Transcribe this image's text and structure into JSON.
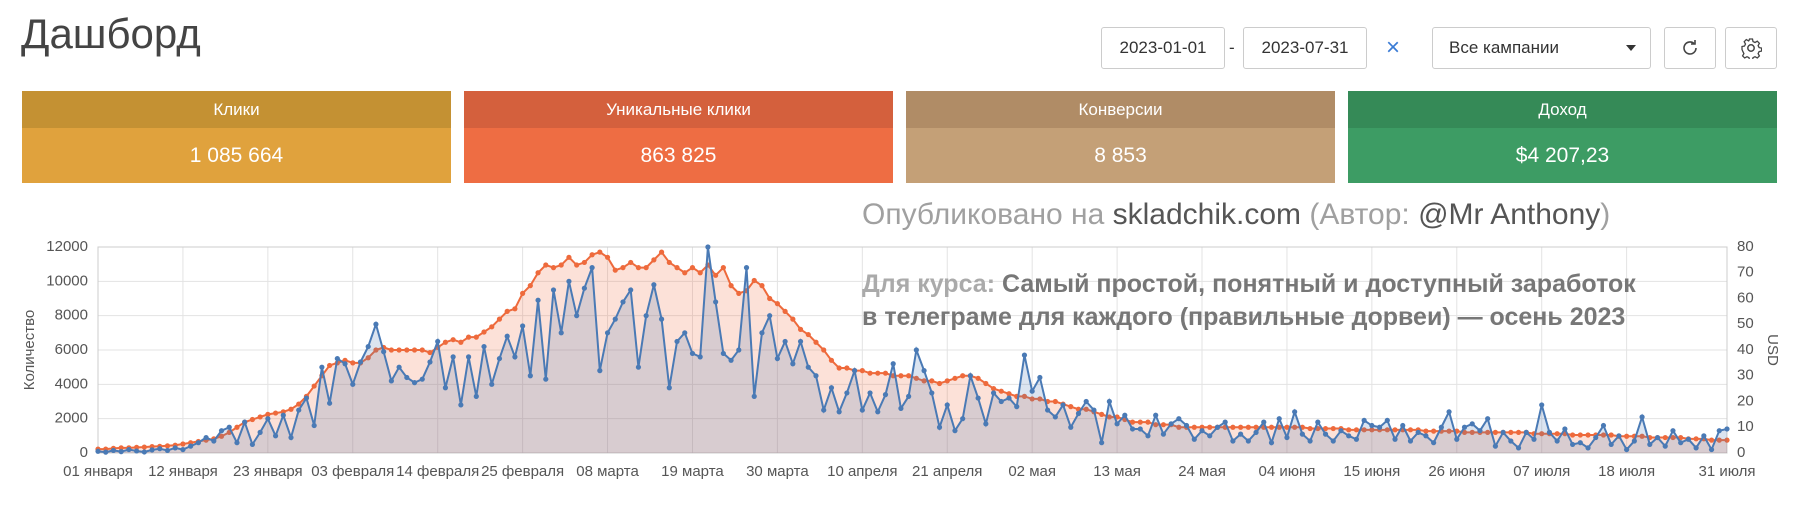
{
  "header": {
    "title": "Дашборд",
    "date_from": "2023-01-01",
    "date_separator": "-",
    "date_to": "2023-07-31",
    "clear": "×",
    "campaign": "Все кампании"
  },
  "cards": [
    {
      "label": "Клики",
      "value": "1 085 664"
    },
    {
      "label": "Уникальные клики",
      "value": "863 825"
    },
    {
      "label": "Конверсии",
      "value": "8 853"
    },
    {
      "label": "Доход",
      "value": "$4 207,23"
    }
  ],
  "watermark": {
    "line1": [
      "Опубликовано на ",
      "skladchik.com",
      " (Автор: ",
      "@Mr Anthony",
      ")"
    ],
    "course_label": "Для курса:",
    "course_line1": "Самый простой, понятный и доступный заработок",
    "course_line2": "в телеграме для каждого (правильные дорвеи) — осень 2023"
  },
  "chart_data": {
    "type": "line",
    "y_label": "Количество",
    "y2_label": "USD",
    "categories": [
      "01 января",
      null,
      null,
      null,
      null,
      null,
      null,
      null,
      null,
      null,
      null,
      "12 января",
      null,
      null,
      null,
      null,
      null,
      null,
      null,
      null,
      null,
      null,
      "23 января",
      null,
      null,
      null,
      null,
      null,
      null,
      null,
      null,
      null,
      null,
      "03 февраля",
      null,
      null,
      null,
      null,
      null,
      null,
      null,
      null,
      null,
      null,
      "14 февраля",
      null,
      null,
      null,
      null,
      null,
      null,
      null,
      null,
      null,
      null,
      "25 февраля",
      null,
      null,
      null,
      null,
      null,
      null,
      null,
      null,
      null,
      null,
      "08 марта",
      null,
      null,
      null,
      null,
      null,
      null,
      null,
      null,
      null,
      null,
      "19 марта",
      null,
      null,
      null,
      null,
      null,
      null,
      null,
      null,
      null,
      null,
      "30 марта",
      null,
      null,
      null,
      null,
      null,
      null,
      null,
      null,
      null,
      null,
      "10 апреля",
      null,
      null,
      null,
      null,
      null,
      null,
      null,
      null,
      null,
      null,
      "21 апреля",
      null,
      null,
      null,
      null,
      null,
      null,
      null,
      null,
      null,
      null,
      "02 мая",
      null,
      null,
      null,
      null,
      null,
      null,
      null,
      null,
      null,
      null,
      "13 мая",
      null,
      null,
      null,
      null,
      null,
      null,
      null,
      null,
      null,
      null,
      "24 мая",
      null,
      null,
      null,
      null,
      null,
      null,
      null,
      null,
      null,
      null,
      "04 июня",
      null,
      null,
      null,
      null,
      null,
      null,
      null,
      null,
      null,
      null,
      "15 июня",
      null,
      null,
      null,
      null,
      null,
      null,
      null,
      null,
      null,
      null,
      "26 июня",
      null,
      null,
      null,
      null,
      null,
      null,
      null,
      null,
      null,
      null,
      "07 июля",
      null,
      null,
      null,
      null,
      null,
      null,
      null,
      null,
      null,
      null,
      "18 июля",
      null,
      null,
      null,
      null,
      null,
      null,
      null,
      null,
      null,
      null,
      null,
      null,
      "31 июля"
    ],
    "series": [
      {
        "color": "#ee6a3c",
        "axis": "y2",
        "values": [
          1.5,
          1.5,
          1.8,
          2,
          2,
          2.2,
          2.3,
          2.5,
          2.6,
          2.8,
          3,
          3.5,
          4,
          4.5,
          5,
          5.5,
          6.5,
          8,
          10,
          12,
          13,
          14,
          15,
          15.5,
          16,
          17,
          19,
          22,
          26,
          30,
          34,
          35,
          36,
          35,
          35,
          37,
          40,
          41,
          40,
          40,
          40,
          40,
          40,
          39,
          41,
          43,
          44,
          43,
          45,
          45,
          47,
          49,
          52,
          55,
          56,
          62,
          65,
          70,
          73,
          72,
          73,
          76,
          73,
          74,
          77,
          78,
          76,
          71,
          72,
          74,
          72,
          72,
          75,
          78,
          74,
          72,
          70,
          72,
          70,
          73,
          69,
          72,
          65,
          62,
          63,
          67,
          65,
          60,
          58,
          55,
          52,
          48,
          46,
          43,
          40,
          36,
          33,
          33,
          32,
          32,
          31,
          31,
          31,
          30,
          30,
          30,
          29,
          28,
          28,
          27,
          28,
          29,
          30,
          30,
          29,
          27,
          25,
          24,
          23,
          22,
          22,
          21,
          21,
          20,
          20,
          19,
          18,
          17,
          17,
          16,
          15,
          14,
          14,
          13,
          12,
          12,
          12,
          11,
          11,
          11,
          10,
          10,
          10,
          10,
          10,
          10,
          10,
          10,
          10,
          10,
          10,
          10,
          10,
          10,
          10,
          10,
          10,
          9.5,
          9.5,
          9.5,
          9.5,
          9.5,
          9,
          9,
          9,
          9,
          9,
          9,
          9,
          9,
          9,
          9,
          8.5,
          8.5,
          8.5,
          8.5,
          8.5,
          8,
          8,
          8,
          8,
          8,
          8,
          8,
          8,
          8,
          7.5,
          7.5,
          7.5,
          7.5,
          7.5,
          7,
          7,
          7,
          7,
          7,
          7,
          6.5,
          6.5,
          6.5,
          6.5,
          6,
          6,
          6,
          6,
          6,
          5.5,
          5.5,
          5.5,
          5,
          5,
          5
        ]
      },
      {
        "color": "#4a7ab5",
        "values": [
          100,
          50,
          150,
          80,
          200,
          120,
          60,
          180,
          250,
          150,
          300,
          200,
          400,
          600,
          900,
          700,
          1300,
          1500,
          600,
          1800,
          500,
          1200,
          2000,
          1000,
          2200,
          900,
          2500,
          3200,
          1600,
          5000,
          2900,
          5500,
          5200,
          4000,
          5300,
          6200,
          7500,
          5900,
          4200,
          5000,
          4400,
          4100,
          4300,
          5300,
          6500,
          3800,
          5600,
          2800,
          5600,
          3300,
          6200,
          4000,
          5500,
          6800,
          5600,
          7400,
          4500,
          8900,
          4300,
          9500,
          7000,
          10000,
          8000,
          9600,
          10800,
          4800,
          7000,
          7800,
          8800,
          9500,
          5000,
          8000,
          9800,
          7800,
          3800,
          6500,
          7000,
          5800,
          5600,
          12000,
          8800,
          5800,
          5400,
          6000,
          10800,
          3300,
          7000,
          8000,
          5500,
          6500,
          5200,
          6500,
          5000,
          4500,
          2500,
          3800,
          2400,
          3500,
          4800,
          2500,
          3500,
          2400,
          3400,
          5200,
          2600,
          3300,
          6000,
          4800,
          3500,
          1500,
          2800,
          1300,
          2000,
          4500,
          3200,
          1700,
          3500,
          3000,
          3200,
          2700,
          5700,
          3600,
          4400,
          2500,
          2100,
          2800,
          1500,
          2300,
          3000,
          2500,
          600,
          3000,
          1700,
          2200,
          1400,
          1400,
          1000,
          2200,
          1100,
          1700,
          2000,
          1600,
          800,
          1300,
          1000,
          1500,
          1800,
          700,
          1100,
          700,
          1200,
          1800,
          600,
          2000,
          900,
          2400,
          1100,
          700,
          1800,
          1100,
          700,
          1300,
          1000,
          800,
          1900,
          1600,
          1500,
          1900,
          800,
          1600,
          700,
          1200,
          1000,
          600,
          1500,
          2400,
          800,
          1500,
          1700,
          1300,
          2000,
          400,
          1200,
          700,
          300,
          1200,
          800,
          2800,
          1200,
          700,
          1400,
          500,
          600,
          300,
          900,
          1600,
          500,
          1000,
          200,
          700,
          2100,
          500,
          900,
          400,
          1300,
          600,
          800,
          300,
          1000,
          200,
          1300,
          1400
        ]
      }
    ],
    "ylim": [
      0,
      12000
    ],
    "yticks": [
      0,
      2000,
      4000,
      6000,
      8000,
      10000,
      12000
    ],
    "y2lim": [
      0,
      80
    ],
    "y2ticks": [
      0,
      10,
      20,
      30,
      40,
      50,
      60,
      70,
      80
    ],
    "grid": true
  }
}
